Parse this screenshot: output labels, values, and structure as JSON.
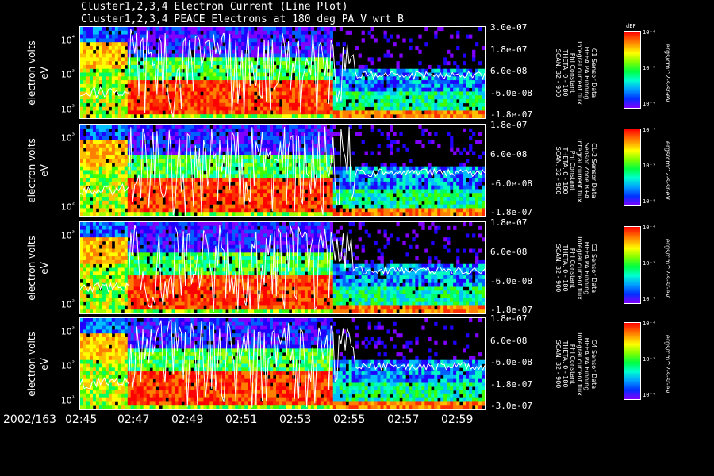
{
  "title1": "Cluster1,2,3,4 Electron Current (Line Plot)",
  "title2": "Cluster1,2,3,4 PEACE Electrons at 180 deg PA V wrt B",
  "colors": {
    "line": "#ffffff",
    "bg": "#000000"
  },
  "chart_data": {
    "type": "heatmap",
    "xlabel_date": "2002/163",
    "x_ticks": [
      "02:45",
      "02:47",
      "02:49",
      "02:51",
      "02:53",
      "02:55",
      "02:57",
      "02:59"
    ],
    "colorbar_label": "dEF",
    "colorbar_unit": "ergs/cm^2-s-sr-eV",
    "colorbar_ticks": [
      "10⁻⁴",
      "10⁻⁵",
      "10⁻⁶"
    ],
    "panels": [
      {
        "name": "C1",
        "ylabel1": "electron volts",
        "ylabel2": "eV",
        "y_ticks": [
          "10⁴",
          "10³",
          "10²"
        ],
        "right_ticks": [
          "3.0e-07",
          "1.8e-07",
          "6.0e-08",
          "-6.0e-08",
          "-1.8e-07"
        ],
        "info": "C1 Sensor Data\nHEEA PA Binning\nIntegral current flux\nPhi Constant\nTHETA: 0 - 180\nSCAN: 32 - 900"
      },
      {
        "name": "C2",
        "ylabel1": "electron volts",
        "ylabel2": "eV",
        "y_ticks": [
          "10³",
          "10²"
        ],
        "right_ticks": [
          "1.8e-07",
          "6.0e-08",
          "-6.0e-08",
          "-1.8e-07"
        ],
        "info": "CL-2 Sensor Data\nSensor Zone B+A\nIntegral current flux\nPhi Constant\nTHETA: 0 - 180\nSCAN: 32 - 900"
      },
      {
        "name": "C3",
        "ylabel1": "electron volts",
        "ylabel2": "eV",
        "y_ticks": [
          "10³",
          "10²"
        ],
        "right_ticks": [
          "1.8e-07",
          "6.0e-08",
          "-6.0e-08",
          "-1.8e-07"
        ],
        "info": "C3 Sensor Data\nHEEA PA Binning\nIntegral current flux\nPhi Constant\nTHETA: 0 - 180\nSCAN: 32 - 900"
      },
      {
        "name": "C4",
        "ylabel1": "electron volts",
        "ylabel2": "eV",
        "y_ticks": [
          "10³",
          "10²",
          "10¹"
        ],
        "right_ticks": [
          "1.8e-07",
          "6.0e-08",
          "-6.0e-08",
          "-1.8e-07",
          "-3.0e-07"
        ],
        "info": "C4 Sensor Data\nHEEA PA Binning\nIntegral current flux\nPhi Constant\nTHETA: 0 - 180\nSCAN: 32 - 900"
      }
    ]
  }
}
